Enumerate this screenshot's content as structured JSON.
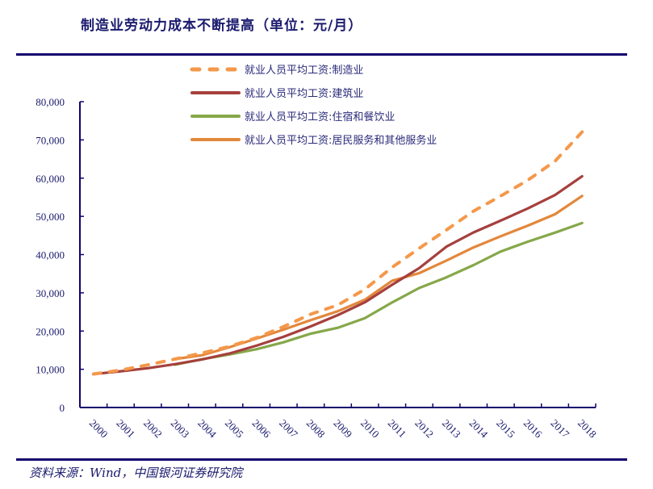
{
  "title": "制造业劳动力成本不断提高（单位：元/月）",
  "source": "资料来源：Wind，中国银河证券研究院",
  "chart_data": {
    "type": "line",
    "title": "制造业劳动力成本不断提高（单位：元/月）",
    "xlabel": "",
    "ylabel": "",
    "ylim": [
      0,
      80000
    ],
    "yticks": [
      0,
      10000,
      20000,
      30000,
      40000,
      50000,
      60000,
      70000,
      80000
    ],
    "ytick_labels": [
      "0",
      "10,000",
      "20,000",
      "30,000",
      "40,000",
      "50,000",
      "60,000",
      "70,000",
      "80,000"
    ],
    "categories": [
      "2000",
      "2001",
      "2002",
      "2003",
      "2004",
      "2005",
      "2006",
      "2007",
      "2008",
      "2009",
      "2010",
      "2011",
      "2012",
      "2013",
      "2014",
      "2015",
      "2016",
      "2017",
      "2018"
    ],
    "grid": false,
    "legend_position": "top",
    "series": [
      {
        "name": "就业人员平均工资:制造业",
        "color": "#f4984a",
        "style": "dashed",
        "values": [
          8750,
          9774,
          11152,
          12671,
          14251,
          15934,
          18225,
          21144,
          24404,
          26810,
          30916,
          36665,
          41650,
          46431,
          51369,
          55324,
          59470,
          64452,
          72088
        ]
      },
      {
        "name": "就业人员平均工资:建筑业",
        "color": "#a5403d",
        "style": "solid",
        "values": [
          8735,
          9484,
          10279,
          11328,
          12578,
          14112,
          16164,
          18482,
          21223,
          24161,
          27529,
          32103,
          36483,
          42072,
          45804,
          48886,
          52082,
          55568,
          60501
        ]
      },
      {
        "name": "就业人员平均工资:住宿和餐饮业",
        "color": "#86a84a",
        "style": "solid",
        "values": [
          null,
          null,
          null,
          11198,
          12618,
          13876,
          15236,
          17046,
          19321,
          20860,
          23382,
          27486,
          31267,
          34044,
          37264,
          40806,
          43382,
          45751,
          48260
        ]
      },
      {
        "name": "就业人员平均工资:居民服务和其他服务业",
        "color": "#e3873b",
        "style": "solid",
        "values": [
          null,
          null,
          null,
          12665,
          13680,
          15747,
          18030,
          20370,
          22858,
          25172,
          28206,
          33169,
          35135,
          38429,
          41882,
          44802,
          47577,
          50552,
          55343
        ]
      }
    ]
  }
}
